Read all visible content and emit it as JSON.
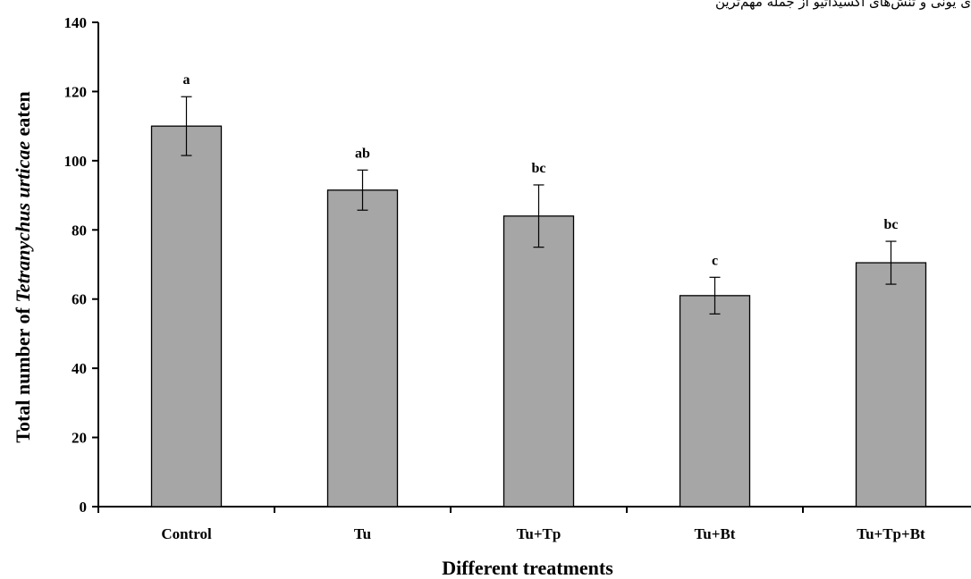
{
  "header_fragment": "ی یونی و تنش‌های اکسیداتیو از جمله مهم‌ترین",
  "chart_data": {
    "type": "bar",
    "title": "",
    "xlabel": "Different treatments",
    "ylabel": {
      "prefix": "Total number of ",
      "species": "Tetranychus urticae",
      "suffix": " eaten"
    },
    "ylim": [
      0,
      140
    ],
    "yticks": [
      "0",
      "20",
      "40",
      "60",
      "80",
      "100",
      "120",
      "140"
    ],
    "grid": false,
    "bar_color": "#a6a6a6",
    "categories": [
      "Control",
      "Tu",
      "Tu+Tp",
      "Tu+Bt",
      "Tu+Tp+Bt"
    ],
    "values": [
      110,
      91.5,
      84,
      61,
      70.5
    ],
    "errors": [
      8.5,
      5.8,
      9,
      5.3,
      6.2
    ],
    "significance_letters": [
      "a",
      "ab",
      "bc",
      "c",
      "bc"
    ]
  }
}
